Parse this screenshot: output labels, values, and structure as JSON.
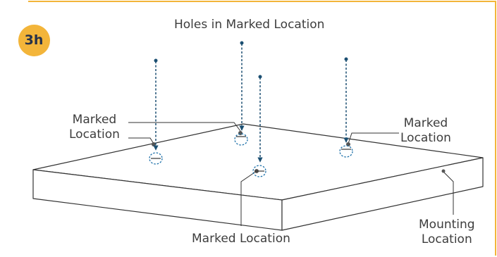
{
  "step_badge": "3h",
  "labels": {
    "holes": "Holes in Marked Location",
    "marked_left": "Marked\nLocation",
    "marked_right": "Marked\nLocation",
    "marked_bottom": "Marked Location",
    "mounting": "Mounting\nLocation"
  },
  "colors": {
    "frame": "#f3b53a",
    "badge": "#f3b53a",
    "arrow": "#1b4f72",
    "line": "#333333",
    "text": "#3d3d3d"
  }
}
